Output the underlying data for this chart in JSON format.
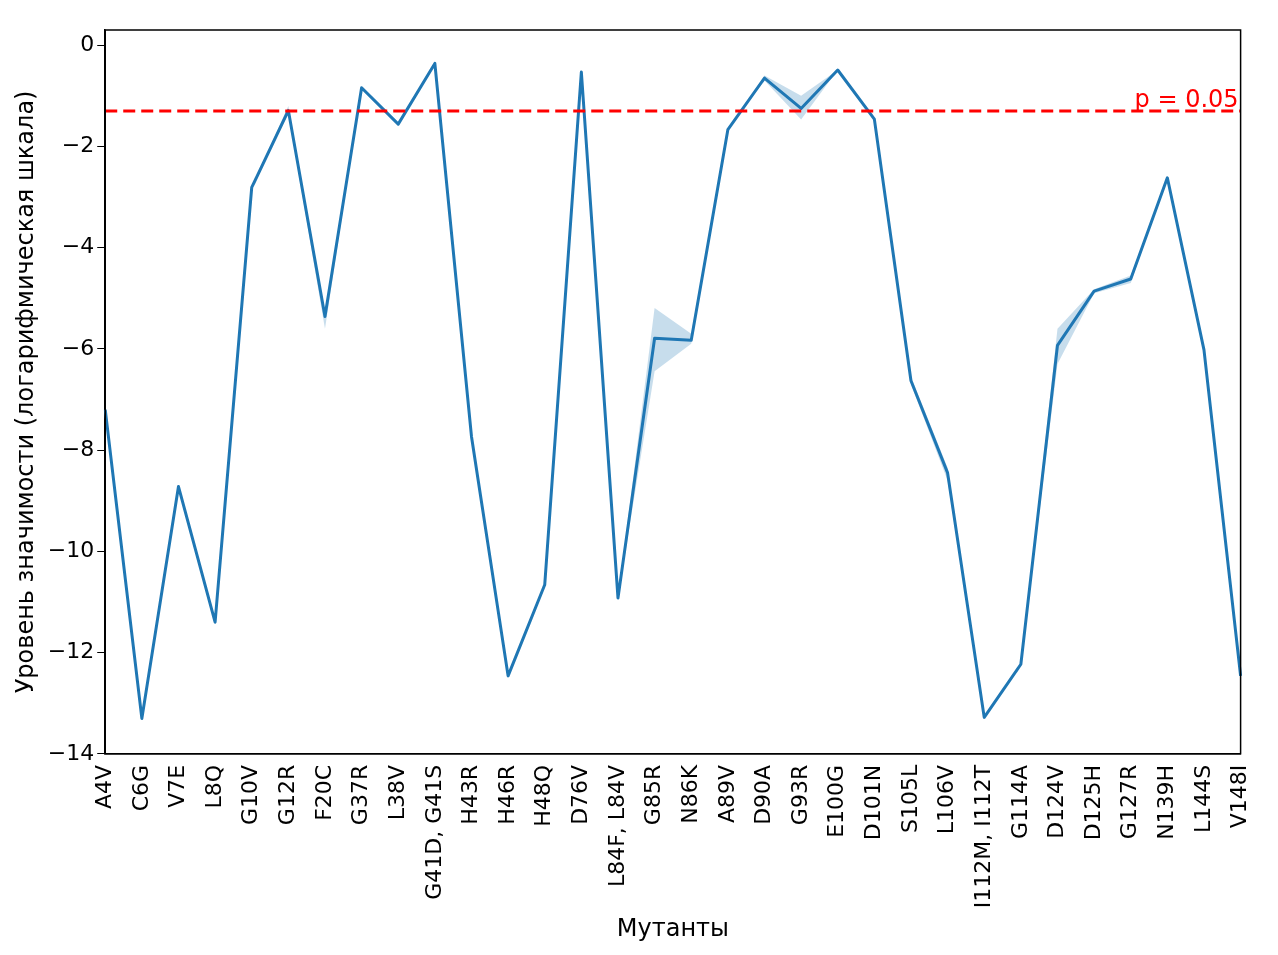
{
  "chart_data": {
    "type": "line",
    "xlabel": "Мутанты",
    "ylabel": "Уровень значимости (логарифмическая шкала)",
    "categories": [
      "A4V",
      "C6G",
      "V7E",
      "L8Q",
      "G10V",
      "G12R",
      "F20C",
      "G37R",
      "L38V",
      "G41D, G41S",
      "H43R",
      "H46R",
      "H48Q",
      "D76V",
      "L84F, L84V",
      "G85R",
      "N86K",
      "A89V",
      "D90A",
      "G93R",
      "E100G",
      "D101N",
      "S105L",
      "L106V",
      "I112M, I112T",
      "G114A",
      "D124V",
      "D125H",
      "G127R",
      "N139H",
      "L144S",
      "V148I"
    ],
    "series": [
      {
        "color": "#1f77b4",
        "values": [
          -7.2,
          -13.3,
          -8.72,
          -11.4,
          -2.81,
          -1.29,
          -5.36,
          -0.84,
          -1.56,
          -0.36,
          -7.73,
          -12.46,
          -10.66,
          -0.53,
          -10.92,
          -5.79,
          -5.83,
          -1.67,
          -0.65,
          -1.25,
          -0.49,
          -1.46,
          -6.63,
          -8.45,
          -13.28,
          -12.23,
          -5.93,
          -4.86,
          -4.62,
          -2.62,
          -6.02,
          -12.46
        ],
        "lower": [
          -7.2,
          -13.3,
          -8.72,
          -11.4,
          -2.81,
          -1.35,
          -5.6,
          -0.84,
          -1.56,
          -0.36,
          -7.73,
          -12.46,
          -10.66,
          -0.53,
          -10.92,
          -6.44,
          -5.9,
          -1.67,
          -0.7,
          -1.47,
          -0.49,
          -1.46,
          -6.7,
          -8.6,
          -13.28,
          -12.23,
          -6.3,
          -4.9,
          -4.7,
          -2.62,
          -6.02,
          -12.46
        ],
        "upper": [
          -7.2,
          -13.3,
          -8.72,
          -11.4,
          -2.81,
          -1.2,
          -5.3,
          -0.84,
          -1.56,
          -0.36,
          -7.73,
          -12.46,
          -10.66,
          -0.53,
          -10.92,
          -5.19,
          -5.7,
          -1.67,
          -0.6,
          -1.0,
          -0.49,
          -1.46,
          -6.55,
          -8.35,
          -13.28,
          -12.23,
          -5.6,
          -4.82,
          -4.55,
          -2.62,
          -6.02,
          -12.46
        ]
      }
    ],
    "ylim": [
      -14,
      0.3
    ],
    "yticks": [
      {
        "value": -14,
        "label": "−14"
      },
      {
        "value": -12,
        "label": "−12"
      },
      {
        "value": -10,
        "label": "−10"
      },
      {
        "value": -8,
        "label": "−8"
      },
      {
        "value": -6,
        "label": "−6"
      },
      {
        "value": -4,
        "label": "−4"
      },
      {
        "value": -2,
        "label": "−2"
      },
      0
    ],
    "ref_lines": [
      {
        "axis": "y",
        "value": -1.301,
        "color": "#ff0000",
        "line_style": "dashed"
      }
    ],
    "annotations": [
      "p = 0.05"
    ],
    "grid": false,
    "legend": false,
    "line_style": "solid"
  }
}
